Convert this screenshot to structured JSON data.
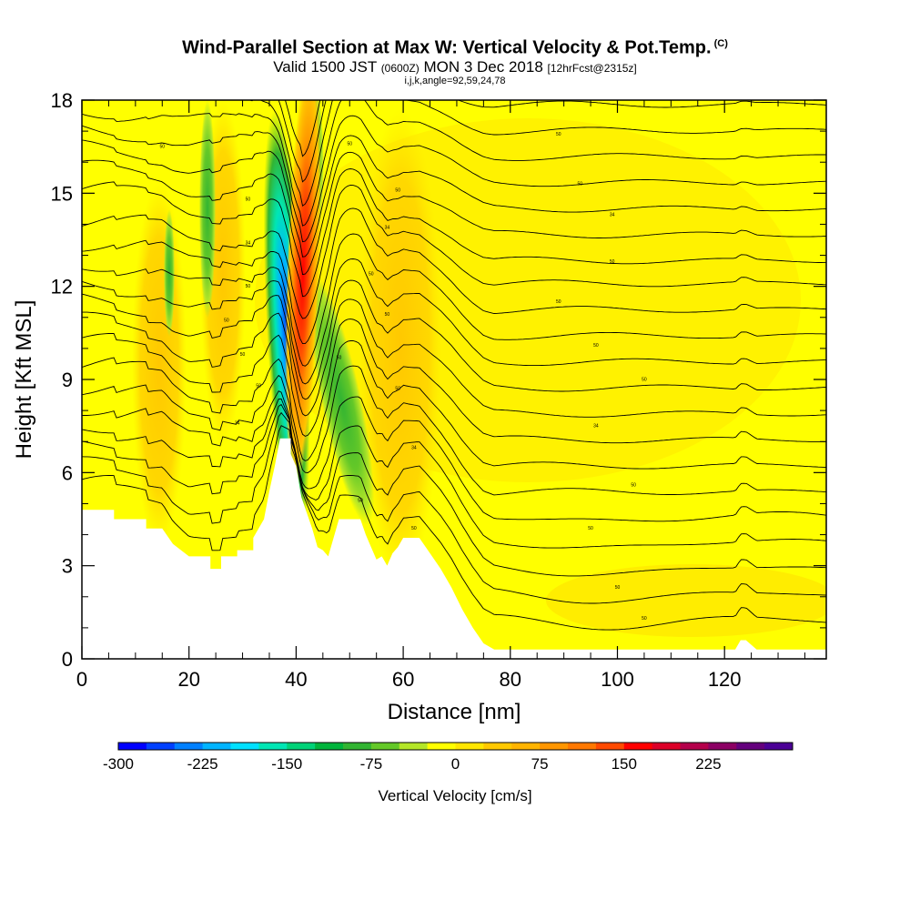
{
  "header": {
    "title": "Wind-Parallel Section at Max W: Vertical Velocity & Pot.Temp.",
    "title_mark": "(C)",
    "subtitle_a": "Valid 1500 JST",
    "subtitle_b": "(0600Z)",
    "subtitle_c": "MON 3 Dec 2018",
    "subtitle_d": "[12hrFcst@2315z]",
    "subtitle_line3": "i,j,k,angle=92,59,24,78"
  },
  "chart_data": {
    "type": "heatmap",
    "title": "Wind-Parallel Section at Max W: Vertical Velocity & Pot.Temp.",
    "xlabel": "Distance [nm]",
    "ylabel": "Height [Kft MSL]",
    "xlim": [
      0,
      139
    ],
    "ylim": [
      0,
      18
    ],
    "x_ticks": [
      "0",
      "20",
      "40",
      "60",
      "80",
      "100",
      "120"
    ],
    "x_tick_values": [
      0,
      20,
      40,
      60,
      80,
      100,
      120
    ],
    "y_ticks": [
      "0",
      "3",
      "6",
      "9",
      "12",
      "15",
      "18"
    ],
    "y_tick_values": [
      0,
      3,
      6,
      9,
      12,
      15,
      18
    ],
    "grid": false,
    "colorbar": {
      "title": "Vertical Velocity [cm/s]",
      "labels": [
        "-300",
        "-225",
        "-150",
        "-75",
        "0",
        "75",
        "150",
        "225"
      ],
      "label_values": [
        -300,
        -225,
        -150,
        -75,
        0,
        75,
        150,
        225
      ],
      "bin_width": 25,
      "colors": [
        "#0000ff",
        "#0040ff",
        "#0080ff",
        "#00b4ff",
        "#00e0ff",
        "#00e6b4",
        "#00d278",
        "#00b43c",
        "#32b432",
        "#64c828",
        "#b4e628",
        "#ffff00",
        "#ffe600",
        "#ffc800",
        "#ffb400",
        "#ff9600",
        "#ff7800",
        "#ff4a00",
        "#ff0000",
        "#dc0028",
        "#b4004b",
        "#8c0064",
        "#64007d",
        "#4b0096"
      ]
    },
    "terrain": [
      [
        0,
        4.8
      ],
      [
        6,
        4.8
      ],
      [
        6,
        4.5
      ],
      [
        12,
        4.5
      ],
      [
        12,
        4.2
      ],
      [
        15,
        4.2
      ],
      [
        17,
        3.7
      ],
      [
        20,
        3.3
      ],
      [
        22,
        3.3
      ],
      [
        24,
        3.3
      ],
      [
        24,
        2.9
      ],
      [
        26,
        2.9
      ],
      [
        26,
        3.3
      ],
      [
        29,
        3.3
      ],
      [
        29,
        3.5
      ],
      [
        32,
        3.5
      ],
      [
        32,
        3.9
      ],
      [
        34,
        4.5
      ],
      [
        35,
        5.4
      ],
      [
        36,
        6.2
      ],
      [
        37,
        7.1
      ],
      [
        39,
        7.1
      ],
      [
        39,
        6.6
      ],
      [
        40,
        6.2
      ],
      [
        41,
        5.2
      ],
      [
        43,
        4.2
      ],
      [
        44,
        3.6
      ],
      [
        45,
        3.5
      ],
      [
        46,
        3.3
      ],
      [
        47,
        3.9
      ],
      [
        48,
        4.5
      ],
      [
        52,
        4.5
      ],
      [
        53,
        4.0
      ],
      [
        54,
        3.6
      ],
      [
        55,
        3.2
      ],
      [
        56,
        3.3
      ],
      [
        57,
        3.0
      ],
      [
        58,
        3.4
      ],
      [
        59,
        3.6
      ],
      [
        60,
        3.9
      ],
      [
        63,
        3.9
      ],
      [
        65,
        3.4
      ],
      [
        67,
        2.9
      ],
      [
        69,
        2.3
      ],
      [
        71,
        1.6
      ],
      [
        73,
        1.0
      ],
      [
        75,
        0.5
      ],
      [
        77,
        0.3
      ],
      [
        122,
        0.3
      ],
      [
        123,
        0.6
      ],
      [
        124,
        0.6
      ],
      [
        126,
        0.3
      ],
      [
        139,
        0.3
      ]
    ],
    "updraft_core": {
      "x": 41,
      "y_range": [
        7,
        18
      ],
      "max_cm_s": 175
    },
    "downdraft_core": {
      "x": 38.5,
      "y_range": [
        8,
        12
      ],
      "min_cm_s": -250
    },
    "contour_labels": [
      {
        "text": "50",
        "x": 15,
        "y": 16.5
      },
      {
        "text": "50",
        "x": 50,
        "y": 16.6
      },
      {
        "text": "50",
        "x": 89,
        "y": 16.9
      },
      {
        "text": "50",
        "x": 31,
        "y": 14.8
      },
      {
        "text": "50",
        "x": 59,
        "y": 15.1
      },
      {
        "text": "50",
        "x": 93,
        "y": 15.3
      },
      {
        "text": "34",
        "x": 31,
        "y": 13.4
      },
      {
        "text": "34",
        "x": 57,
        "y": 13.9
      },
      {
        "text": "34",
        "x": 99,
        "y": 14.3
      },
      {
        "text": "50",
        "x": 31,
        "y": 12.0
      },
      {
        "text": "50",
        "x": 54,
        "y": 12.4
      },
      {
        "text": "50",
        "x": 99,
        "y": 12.8
      },
      {
        "text": "50",
        "x": 27,
        "y": 10.9
      },
      {
        "text": "50",
        "x": 57,
        "y": 11.1
      },
      {
        "text": "50",
        "x": 89,
        "y": 11.5
      },
      {
        "text": "50",
        "x": 30,
        "y": 9.8
      },
      {
        "text": "50",
        "x": 48,
        "y": 9.7
      },
      {
        "text": "50",
        "x": 96,
        "y": 10.1
      },
      {
        "text": "50",
        "x": 33,
        "y": 8.8
      },
      {
        "text": "50",
        "x": 59,
        "y": 8.7
      },
      {
        "text": "50",
        "x": 105,
        "y": 9.0
      },
      {
        "text": "34",
        "x": 29,
        "y": 7.6
      },
      {
        "text": "34",
        "x": 62,
        "y": 6.8
      },
      {
        "text": "34",
        "x": 96,
        "y": 7.5
      },
      {
        "text": "50",
        "x": 52,
        "y": 5.1
      },
      {
        "text": "50",
        "x": 103,
        "y": 5.6
      },
      {
        "text": "50",
        "x": 62,
        "y": 4.2
      },
      {
        "text": "50",
        "x": 95,
        "y": 4.2
      },
      {
        "text": "50",
        "x": 100,
        "y": 2.3
      },
      {
        "text": "50",
        "x": 105,
        "y": 1.3
      }
    ]
  }
}
